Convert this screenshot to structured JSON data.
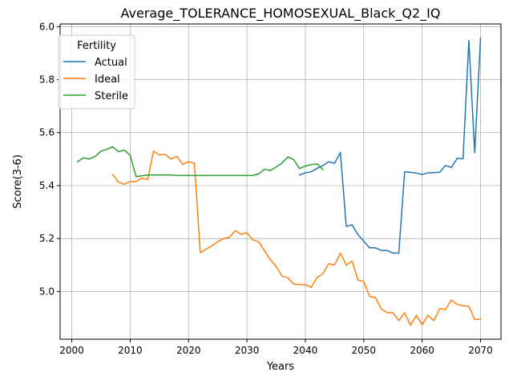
{
  "chart_data": {
    "type": "line",
    "title": "Average_TOLERANCE_HOMOSEXUAL_Black_Q2_IQ",
    "xlabel": "Years",
    "ylabel": "Score(3-6)",
    "xlim": [
      1998,
      2073.5
    ],
    "ylim": [
      4.82,
      6.01
    ],
    "xticks": [
      2000,
      2010,
      2020,
      2030,
      2040,
      2050,
      2060,
      2070
    ],
    "yticks": [
      5.0,
      5.2,
      5.4,
      5.6,
      5.8,
      6.0
    ],
    "xtick_labels": [
      "2000",
      "2010",
      "2020",
      "2030",
      "2040",
      "2050",
      "2060",
      "2070"
    ],
    "ytick_labels": [
      "5.0",
      "5.2",
      "5.4",
      "5.6",
      "5.8",
      "6.0"
    ],
    "grid": true,
    "legend": {
      "title": "Fertility",
      "placement": "top-left"
    },
    "series": [
      {
        "name": "Actual",
        "color": "#1f77b4",
        "x": [
          2039,
          2040,
          2041,
          2042,
          2043,
          2044,
          2045,
          2046,
          2047,
          2048,
          2049,
          2050,
          2051,
          2052,
          2053,
          2054,
          2055,
          2056,
          2057,
          2058,
          2059,
          2060,
          2061,
          2062,
          2063,
          2064,
          2065,
          2066,
          2067,
          2068,
          2069,
          2070
        ],
        "y": [
          5.44,
          5.448,
          5.452,
          5.465,
          5.475,
          5.49,
          5.484,
          5.525,
          5.246,
          5.252,
          5.215,
          5.19,
          5.165,
          5.165,
          5.155,
          5.155,
          5.145,
          5.145,
          5.452,
          5.45,
          5.447,
          5.442,
          5.448,
          5.449,
          5.45,
          5.476,
          5.468,
          5.503,
          5.501,
          5.948,
          5.524,
          5.957
        ]
      },
      {
        "name": "Ideal",
        "color": "#ff7f0e",
        "x": [
          2007,
          2008,
          2009,
          2010,
          2011,
          2012,
          2013,
          2014,
          2015,
          2016,
          2017,
          2018,
          2019,
          2020,
          2021,
          2022,
          2023,
          2024,
          2025,
          2026,
          2027,
          2028,
          2029,
          2030,
          2031,
          2032,
          2033,
          2034,
          2035,
          2036,
          2037,
          2038,
          2039,
          2040,
          2041,
          2042,
          2043,
          2044,
          2045,
          2046,
          2047,
          2048,
          2049,
          2050,
          2051,
          2052,
          2053,
          2054,
          2055,
          2056,
          2057,
          2058,
          2059,
          2060,
          2061,
          2062,
          2063,
          2064,
          2065,
          2066,
          2067,
          2068,
          2069,
          2070
        ],
        "y": [
          5.442,
          5.413,
          5.405,
          5.415,
          5.415,
          5.428,
          5.423,
          5.53,
          5.516,
          5.518,
          5.5,
          5.51,
          5.48,
          5.49,
          5.484,
          5.146,
          5.16,
          5.173,
          5.188,
          5.2,
          5.205,
          5.23,
          5.216,
          5.222,
          5.195,
          5.188,
          5.154,
          5.12,
          5.095,
          5.058,
          5.052,
          5.028,
          5.026,
          5.026,
          5.016,
          5.053,
          5.067,
          5.105,
          5.1,
          5.145,
          5.1,
          5.115,
          5.044,
          5.038,
          4.982,
          4.977,
          4.935,
          4.92,
          4.92,
          4.89,
          4.92,
          4.873,
          4.91,
          4.875,
          4.91,
          4.89,
          4.935,
          4.932,
          4.968,
          4.952,
          4.946,
          4.944,
          4.894,
          4.896
        ]
      },
      {
        "name": "Sterile",
        "color": "#2ca02c",
        "x": [
          2001,
          2002,
          2003,
          2004,
          2005,
          2006,
          2007,
          2008,
          2009,
          2010,
          2011,
          2012,
          2013,
          2014,
          2015,
          2016,
          2017,
          2018,
          2019,
          2020,
          2021,
          2022,
          2023,
          2024,
          2025,
          2026,
          2027,
          2028,
          2029,
          2030,
          2031,
          2032,
          2033,
          2034,
          2035,
          2036,
          2037,
          2038,
          2039,
          2040,
          2041,
          2042,
          2043
        ],
        "y": [
          5.49,
          5.505,
          5.5,
          5.51,
          5.53,
          5.537,
          5.546,
          5.528,
          5.534,
          5.514,
          5.434,
          5.437,
          5.44,
          5.44,
          5.44,
          5.44,
          5.44,
          5.438,
          5.438,
          5.438,
          5.438,
          5.438,
          5.438,
          5.438,
          5.438,
          5.438,
          5.438,
          5.438,
          5.438,
          5.438,
          5.438,
          5.444,
          5.462,
          5.457,
          5.47,
          5.485,
          5.508,
          5.498,
          5.464,
          5.474,
          5.479,
          5.482,
          5.46
        ]
      }
    ]
  }
}
